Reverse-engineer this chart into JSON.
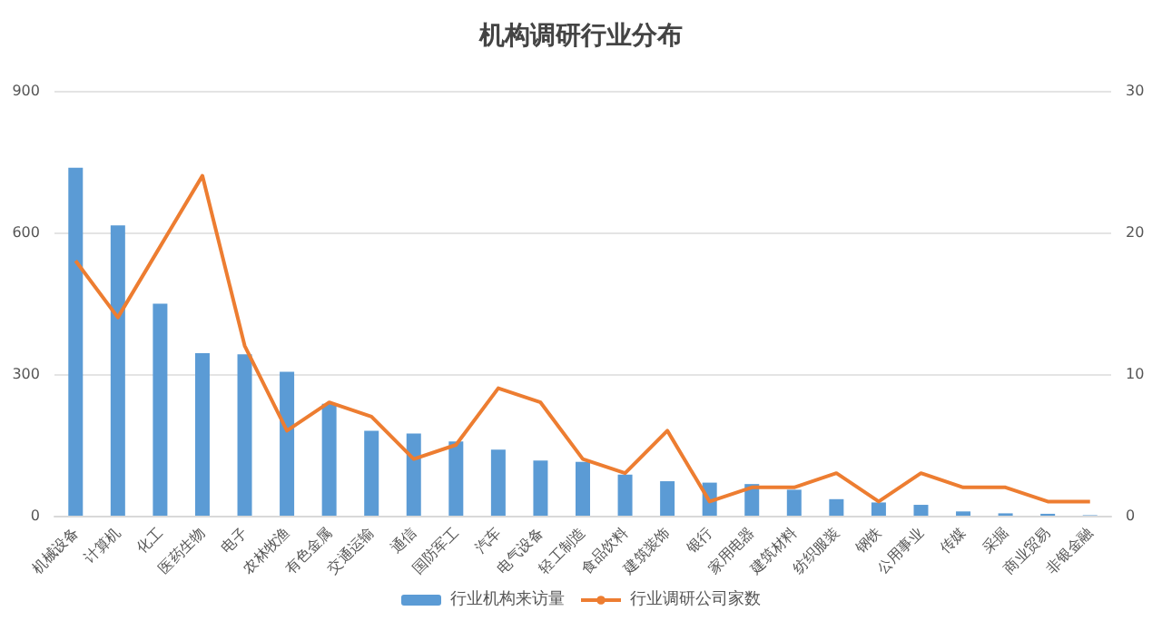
{
  "chart_data": {
    "type": "bar",
    "title": "机构调研行业分布",
    "categories": [
      "机械设备",
      "计算机",
      "化工",
      "医药生物",
      "电子",
      "农林牧渔",
      "有色金属",
      "交通运输",
      "通信",
      "国防军工",
      "汽车",
      "电气设备",
      "轻工制造",
      "食品饮料",
      "建筑装饰",
      "银行",
      "家用电器",
      "建筑材料",
      "纺织服装",
      "钢铁",
      "公用事业",
      "传媒",
      "采掘",
      "商业贸易",
      "非银金融"
    ],
    "series": [
      {
        "name": "行业机构来访量",
        "color": "#5b9bd5",
        "values": [
          737,
          615,
          449,
          344,
          342,
          305,
          237,
          180,
          174,
          157,
          140,
          117,
          114,
          87,
          73,
          70,
          67,
          55,
          35,
          28,
          23,
          9,
          5,
          4,
          1
        ]
      },
      {
        "name": "行业调研公司家数",
        "type": "line",
        "axis": "y2",
        "color": "#ed7d31",
        "values": [
          18,
          14,
          19,
          24,
          12,
          6,
          8,
          7,
          4,
          5,
          9,
          8,
          4,
          3,
          6,
          1,
          2,
          2,
          3,
          1,
          3,
          2,
          2,
          1,
          1
        ]
      }
    ],
    "ylim": [
      0,
      900
    ],
    "yticks": [
      0,
      300,
      600,
      900
    ],
    "y2lim": [
      0,
      30
    ],
    "y2ticks": [
      0,
      10,
      20,
      30
    ],
    "grid": "y",
    "legend": "bottom",
    "marker": "none",
    "line_style": "solid"
  }
}
